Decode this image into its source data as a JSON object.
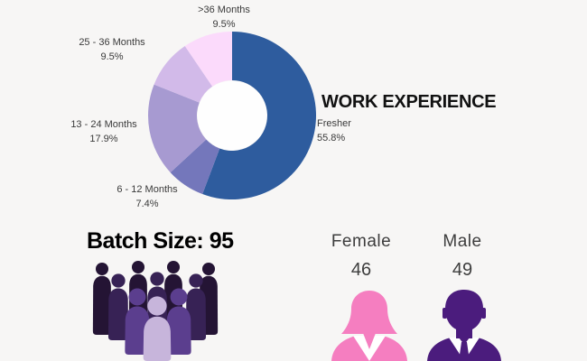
{
  "background_color": "#f7f6f5",
  "chart_data": [
    {
      "type": "pie",
      "subtype": "donut",
      "title": "WORK EXPERIENCE",
      "categories": [
        "Fresher",
        "6 - 12 Months",
        "13 - 24 Months",
        "25 - 36 Months",
        ">36 Months"
      ],
      "values": [
        55.8,
        7.4,
        17.9,
        9.5,
        9.5
      ],
      "value_labels": [
        "55.8%",
        "7.4%",
        "17.9%",
        "9.5%",
        "9.5%"
      ],
      "colors": [
        "#2e5c9e",
        "#7477bb",
        "#a79ad1",
        "#d2bae9",
        "#fbdafb"
      ],
      "start_angle_deg": 0,
      "direction": "clockwise",
      "hole_color": "#fefefe",
      "hole_radius_ratio": 0.42,
      "legend": "none",
      "labels_position": "outside"
    },
    {
      "type": "pictogram",
      "title": "Batch Size: 95",
      "value": 95,
      "colors": [
        "#241434",
        "#372255",
        "#5b3e8e",
        "#c7b5db"
      ]
    },
    {
      "type": "pictogram",
      "categories": [
        "Female",
        "Male"
      ],
      "values": [
        46,
        49
      ],
      "colors": [
        "#f57ec0",
        "#4b1c7d"
      ]
    }
  ]
}
